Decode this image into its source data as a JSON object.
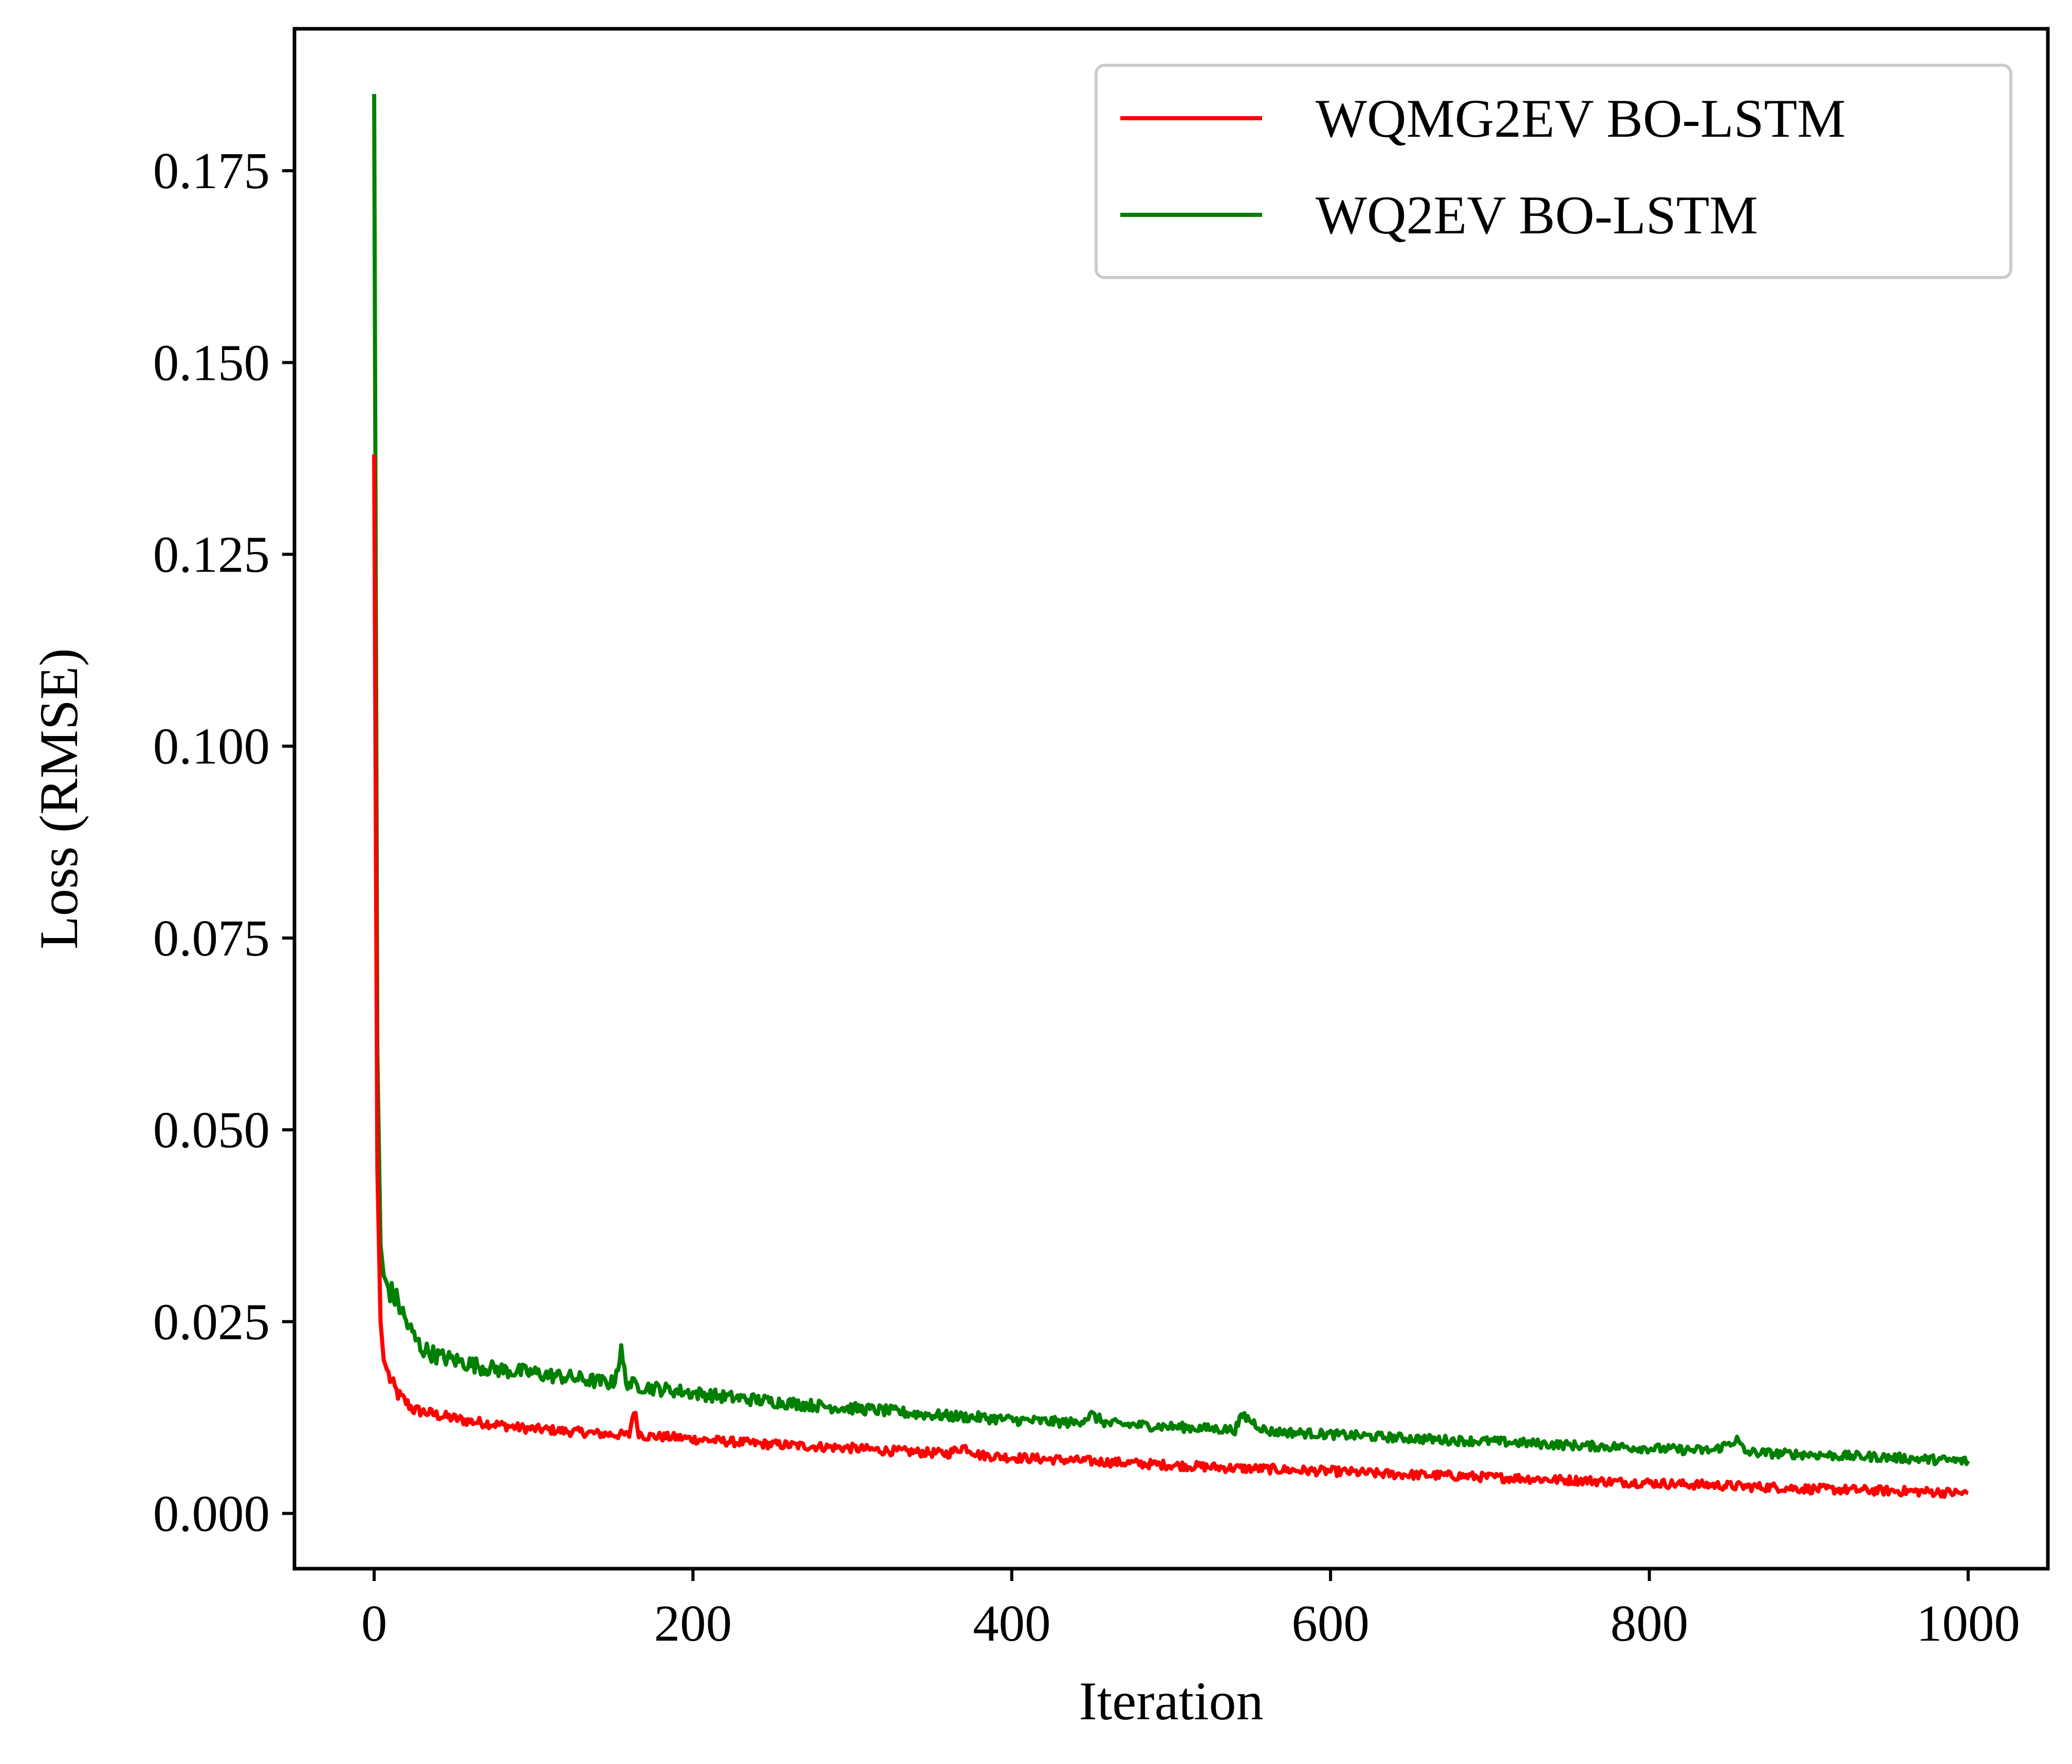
{
  "chart_data": {
    "type": "line",
    "title": "",
    "xlabel": "Iteration",
    "ylabel": "Loss (RMSE)",
    "xlim": [
      -50,
      1050
    ],
    "ylim": [
      -0.0072,
      0.1935
    ],
    "xticks": [
      0,
      200,
      400,
      600,
      800,
      1000
    ],
    "xtick_labels": [
      "0",
      "200",
      "400",
      "600",
      "800",
      "1000"
    ],
    "yticks": [
      0.0,
      0.025,
      0.05,
      0.075,
      0.1,
      0.125,
      0.15,
      0.175
    ],
    "ytick_labels": [
      "0.000",
      "0.025",
      "0.050",
      "0.075",
      "0.100",
      "0.125",
      "0.150",
      "0.175"
    ],
    "grid": false,
    "legend_position": "top-right",
    "series": [
      {
        "name": "WQMG2EV BO-LSTM",
        "color": "#ff0000",
        "x": [
          0,
          2,
          4,
          6,
          10,
          15,
          20,
          25,
          30,
          40,
          50,
          60,
          70,
          80,
          90,
          100,
          110,
          120,
          130,
          140,
          150,
          160,
          163,
          166,
          170,
          180,
          190,
          200,
          220,
          240,
          260,
          280,
          300,
          320,
          340,
          360,
          370,
          380,
          400,
          420,
          440,
          460,
          480,
          500,
          520,
          540,
          560,
          580,
          600,
          620,
          640,
          660,
          680,
          700,
          720,
          740,
          760,
          780,
          800,
          820,
          840,
          860,
          880,
          900,
          920,
          940,
          960,
          980,
          1000
        ],
        "y": [
          0.138,
          0.045,
          0.025,
          0.02,
          0.0175,
          0.0155,
          0.0145,
          0.0135,
          0.0133,
          0.0128,
          0.0124,
          0.012,
          0.0118,
          0.0115,
          0.0112,
          0.011,
          0.0109,
          0.0107,
          0.0106,
          0.0104,
          0.0103,
          0.0102,
          0.0136,
          0.0105,
          0.0101,
          0.01,
          0.0099,
          0.0097,
          0.0094,
          0.0091,
          0.0089,
          0.0087,
          0.0085,
          0.0082,
          0.008,
          0.0078,
          0.0087,
          0.0076,
          0.0073,
          0.0071,
          0.0069,
          0.0067,
          0.0065,
          0.0063,
          0.0061,
          0.0059,
          0.0058,
          0.0056,
          0.0055,
          0.0053,
          0.0051,
          0.005,
          0.0049,
          0.0047,
          0.0046,
          0.0044,
          0.0043,
          0.0041,
          0.004,
          0.0038,
          0.0037,
          0.0035,
          0.0034,
          0.0032,
          0.0031,
          0.003,
          0.0029,
          0.0028,
          0.0026
        ]
      },
      {
        "name": "WQ2EV BO-LSTM",
        "color": "#008000",
        "x": [
          0,
          2,
          4,
          6,
          10,
          15,
          20,
          25,
          30,
          40,
          50,
          60,
          70,
          80,
          90,
          100,
          110,
          120,
          130,
          140,
          150,
          155,
          158,
          162,
          170,
          180,
          190,
          200,
          220,
          240,
          260,
          280,
          300,
          320,
          340,
          360,
          380,
          400,
          420,
          440,
          450,
          460,
          480,
          500,
          520,
          540,
          545,
          560,
          580,
          600,
          620,
          640,
          660,
          680,
          700,
          720,
          740,
          760,
          780,
          800,
          820,
          840,
          855,
          860,
          880,
          900,
          920,
          940,
          960,
          980,
          1000
        ],
        "y": [
          0.185,
          0.06,
          0.035,
          0.031,
          0.029,
          0.0275,
          0.025,
          0.023,
          0.0215,
          0.0205,
          0.02,
          0.0195,
          0.019,
          0.0187,
          0.0185,
          0.0183,
          0.018,
          0.0178,
          0.0175,
          0.0172,
          0.017,
          0.021,
          0.0172,
          0.0168,
          0.0165,
          0.0162,
          0.016,
          0.0157,
          0.0152,
          0.0148,
          0.0144,
          0.014,
          0.0137,
          0.0134,
          0.013,
          0.0127,
          0.0125,
          0.0122,
          0.012,
          0.0118,
          0.0128,
          0.0117,
          0.0115,
          0.0113,
          0.0111,
          0.0109,
          0.0128,
          0.0107,
          0.0105,
          0.0103,
          0.0101,
          0.0099,
          0.0097,
          0.0095,
          0.0094,
          0.0092,
          0.009,
          0.0088,
          0.0087,
          0.0085,
          0.0083,
          0.0082,
          0.0096,
          0.008,
          0.0078,
          0.0077,
          0.0075,
          0.0074,
          0.0072,
          0.007,
          0.0068
        ]
      }
    ]
  }
}
